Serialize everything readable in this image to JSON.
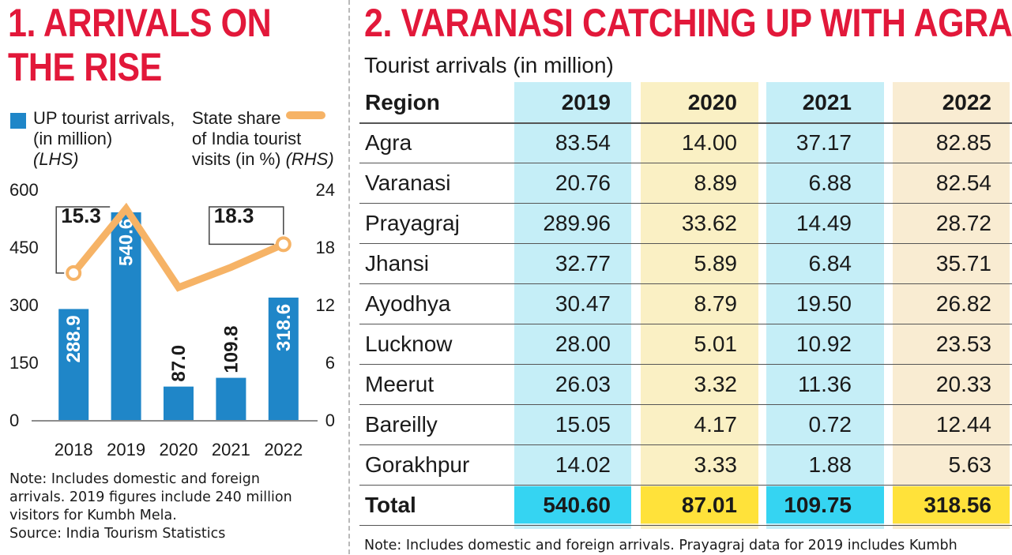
{
  "left": {
    "title_line1": "1. ARRIVALS ON",
    "title_line2": "THE RISE",
    "legend_bar_label_line1": "UP tourist arrivals,",
    "legend_bar_label_line2": "(in million)",
    "legend_bar_axis": "(LHS)",
    "legend_line_label_line1": "State share",
    "legend_line_label_line2": "of India tourist",
    "legend_line_label_line3": "visits (in %)",
    "legend_line_axis": "(RHS)",
    "note_line1": "Note: Includes domestic and foreign",
    "note_line2": "arrivals. 2019 figures include 240 million",
    "note_line3": "visitors for Kumbh Mela.",
    "source": "Source: India Tourism Statistics",
    "colors": {
      "bar": "#1f86c8",
      "line": "#f6b366",
      "title": "#e2183a"
    }
  },
  "chart_data": {
    "type": "bar",
    "categories": [
      "2018",
      "2019",
      "2020",
      "2021",
      "2022"
    ],
    "series": [
      {
        "name": "UP tourist arrivals, (in million)",
        "axis": "left",
        "type": "bar",
        "values": [
          288.9,
          540.6,
          87.0,
          109.8,
          318.6
        ],
        "labels": [
          "288.9",
          "540.6",
          "87.0",
          "109.8",
          "318.6"
        ]
      },
      {
        "name": "State share of India tourist visits (in %)",
        "axis": "right",
        "type": "line",
        "values": [
          15.3,
          22.0,
          13.8,
          15.9,
          18.3
        ],
        "callouts": [
          {
            "index": 0,
            "label": "15.3"
          },
          {
            "index": 4,
            "label": "18.3"
          }
        ]
      }
    ],
    "y_left": {
      "range": [
        0,
        600
      ],
      "ticks": [
        "0",
        "150",
        "300",
        "450",
        "600"
      ]
    },
    "y_right": {
      "range": [
        0,
        24
      ],
      "ticks": [
        "0",
        "6",
        "12",
        "18",
        "24"
      ]
    },
    "grid": false
  },
  "right": {
    "title": "2. VARANASI CATCHING UP WITH AGRA",
    "subtitle": "Tourist arrivals (in million)",
    "columns": [
      "Region",
      "2019",
      "2020",
      "2021",
      "2022"
    ],
    "rows": [
      [
        "Agra",
        "83.54",
        "14.00",
        "37.17",
        "82.85"
      ],
      [
        "Varanasi",
        "20.76",
        "8.89",
        "6.88",
        "82.54"
      ],
      [
        "Prayagraj",
        "289.96",
        "33.62",
        "14.49",
        "28.72"
      ],
      [
        "Jhansi",
        "32.77",
        "5.89",
        "6.84",
        "35.71"
      ],
      [
        "Ayodhya",
        "30.47",
        "8.79",
        "19.50",
        "26.82"
      ],
      [
        "Lucknow",
        "28.00",
        "5.01",
        "10.92",
        "23.53"
      ],
      [
        "Meerut",
        "26.03",
        "3.32",
        "11.36",
        "20.33"
      ],
      [
        "Bareilly",
        "15.05",
        "4.17",
        "0.72",
        "12.44"
      ],
      [
        "Gorakhpur",
        "14.02",
        "3.33",
        "1.88",
        "5.63"
      ]
    ],
    "total": [
      "Total",
      "540.60",
      "87.01",
      "109.75",
      "318.56"
    ],
    "note": "Note: Includes domestic and foreign arrivals. Prayagraj data for 2019 includes Kumbh",
    "colors": {
      "col_2019_bg": "#c5eef7",
      "col_2020_bg": "#faf0c4",
      "col_2021_bg": "#c5eef7",
      "col_2022_bg": "#f9ecd2",
      "total_2019": "#35d4f2",
      "total_2020": "#ffe23a",
      "total_2021": "#35d4f2",
      "total_2022": "#ffe23a"
    }
  }
}
